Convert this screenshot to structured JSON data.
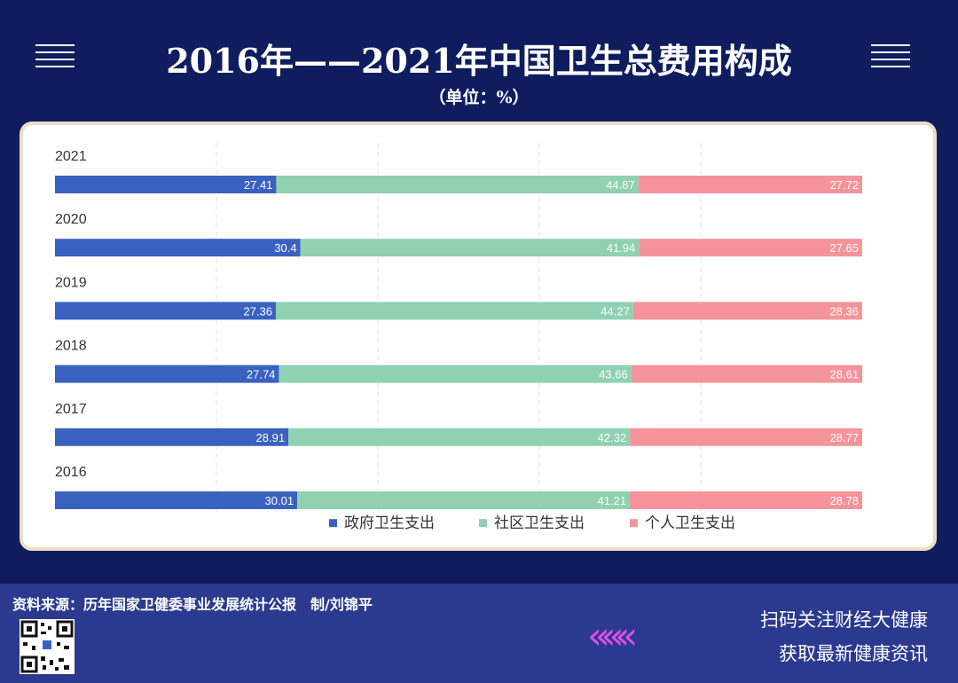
{
  "header": {
    "title": "2016年——2021年中国卫生总费用构成",
    "unit": "（单位：%）"
  },
  "chart_data": {
    "type": "bar",
    "orientation": "horizontal",
    "stacked": true,
    "categories": [
      "2021",
      "2020",
      "2019",
      "2018",
      "2017",
      "2016"
    ],
    "series": [
      {
        "name": "政府卫生支出",
        "color": "#3a61c0",
        "values": [
          27.41,
          30.4,
          27.36,
          27.74,
          28.91,
          30.01
        ]
      },
      {
        "name": "社区卫生支出",
        "color": "#8fd1b0",
        "values": [
          44.87,
          41.94,
          44.27,
          43.66,
          42.32,
          41.21
        ]
      },
      {
        "name": "个人卫生支出",
        "color": "#f4949a",
        "values": [
          27.72,
          27.65,
          28.36,
          28.61,
          28.77,
          28.78
        ]
      }
    ],
    "xlim": [
      0,
      100
    ],
    "grid": true,
    "legend": "bottom"
  },
  "footer": {
    "source": "资料来源：历年国家卫健委事业发展统计公报　制/刘锦平",
    "follow_line1": "扫码关注财经大健康",
    "follow_line2": "获取最新健康资讯",
    "chevrons": "«««"
  }
}
